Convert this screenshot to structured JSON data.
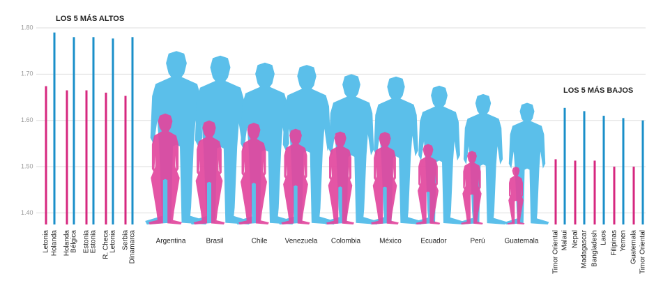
{
  "chart_data": [
    {
      "type": "bar",
      "title": "LOS 5 MÁS ALTOS",
      "categories": [
        "Letonia",
        "Holanda",
        "Holanda",
        "Bélgica",
        "Estonia",
        "Estonia",
        "R. Checa",
        "Letonia",
        "Serbia",
        "Dinamarca"
      ],
      "values": [
        1.674,
        1.79,
        1.665,
        1.78,
        1.665,
        1.78,
        1.66,
        1.777,
        1.653,
        1.78
      ],
      "colors": [
        "#d6277f",
        "#1a8fc9",
        "#d6277f",
        "#1a8fc9",
        "#d6277f",
        "#1a8fc9",
        "#d6277f",
        "#1a8fc9",
        "#d6277f",
        "#1a8fc9"
      ],
      "ylim": [
        1.375,
        1.8
      ],
      "yticks": [
        {
          "value": 1.8,
          "label": "1.80"
        },
        {
          "value": 1.7,
          "label": "1.70"
        },
        {
          "value": 1.6,
          "label": "1.60"
        },
        {
          "value": 1.5,
          "label": "1.50"
        },
        {
          "value": 1.4,
          "label": "1.40"
        }
      ],
      "grid": true
    },
    {
      "type": "pictogram",
      "categories": [
        "Argentina",
        "Brasil",
        "Chile",
        "Venezuela",
        "Colombia",
        "México",
        "Ecuador",
        "Perú",
        "Guatemala"
      ],
      "series": [
        {
          "color": "#5bbfea",
          "values": [
            1.75,
            1.74,
            1.725,
            1.72,
            1.7,
            1.695,
            1.675,
            1.657,
            1.638
          ]
        },
        {
          "color": "#e2479d",
          "values": [
            1.615,
            1.6,
            1.595,
            1.582,
            1.576,
            1.575,
            1.549,
            1.534,
            1.5
          ]
        }
      ]
    },
    {
      "type": "bar",
      "title": "LOS 5 MÁS BAJOS",
      "categories": [
        "Timor Oriental",
        "Malaui",
        "Nepal",
        "Madagascar",
        "Bangladesh",
        "Laos",
        "Filipinas",
        "Yemen",
        "Guatemala",
        "Timor Oriental"
      ],
      "values": [
        1.516,
        1.627,
        1.513,
        1.62,
        1.513,
        1.61,
        1.5,
        1.605,
        1.5,
        1.6
      ],
      "colors": [
        "#d6277f",
        "#1a8fc9",
        "#d6277f",
        "#1a8fc9",
        "#d6277f",
        "#1a8fc9",
        "#d6277f",
        "#1a8fc9",
        "#d6277f",
        "#1a8fc9"
      ]
    }
  ]
}
